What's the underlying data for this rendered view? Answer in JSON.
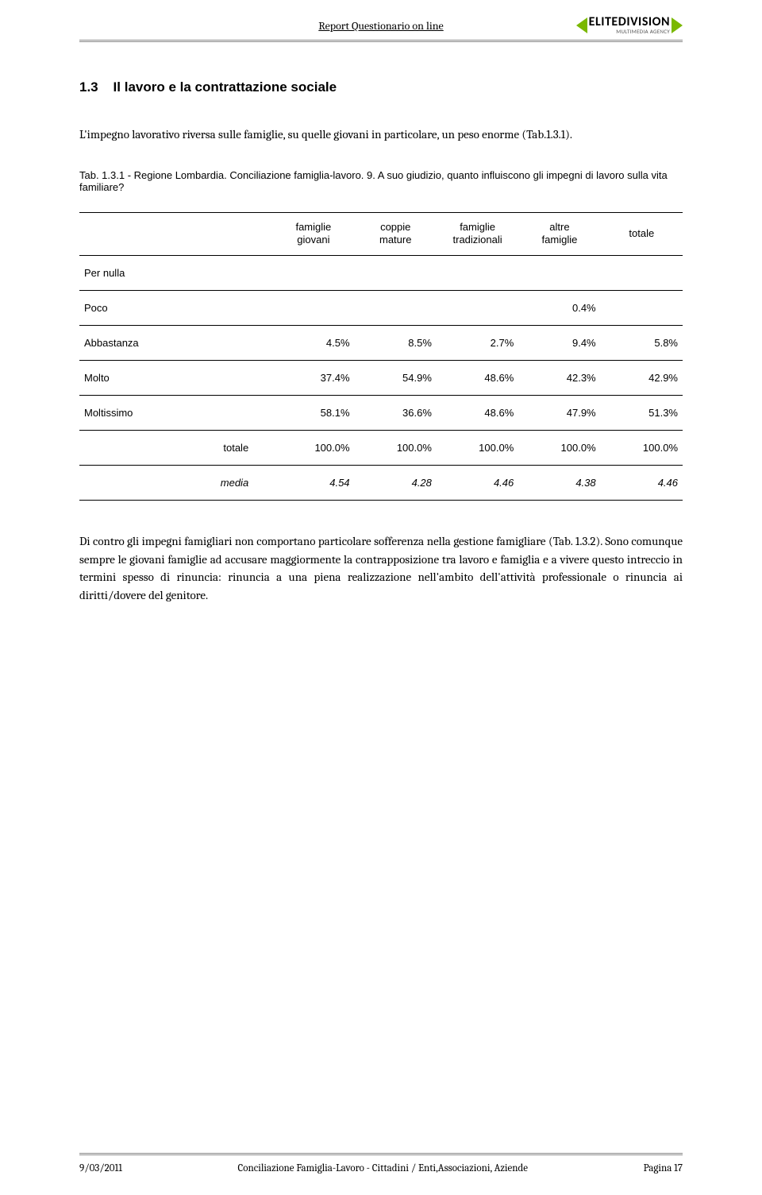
{
  "header": {
    "title": "Report Questionario on line",
    "logo_main": "ELITEDIVISION",
    "logo_sub": "MULTIMEDIA AGENCY"
  },
  "section": {
    "number": "1.3",
    "title": "Il lavoro e la contrattazione sociale"
  },
  "para1": "L'impegno lavorativo riversa sulle famiglie, su quelle giovani in particolare, un peso enorme (Tab.1.3.1).",
  "table": {
    "caption": "Tab. 1.3.1 - Regione Lombardia. Conciliazione famiglia-lavoro. 9. A suo giudizio, quanto influiscono gli impegni di lavoro sulla vita familiare?",
    "columns": [
      "",
      "famiglie giovani",
      "coppie mature",
      "famiglie tradizionali",
      "altre famiglie",
      "totale"
    ],
    "rows": [
      {
        "label": "Per nulla",
        "cells": [
          "",
          "",
          "",
          "",
          ""
        ]
      },
      {
        "label": "Poco",
        "cells": [
          "",
          "",
          "",
          "0.4%",
          ""
        ]
      },
      {
        "label": "Abbastanza",
        "cells": [
          "4.5%",
          "8.5%",
          "2.7%",
          "9.4%",
          "5.8%"
        ]
      },
      {
        "label": "Molto",
        "cells": [
          "37.4%",
          "54.9%",
          "48.6%",
          "42.3%",
          "42.9%"
        ]
      },
      {
        "label": "Moltissimo",
        "cells": [
          "58.1%",
          "36.6%",
          "48.6%",
          "47.9%",
          "51.3%"
        ]
      }
    ],
    "totale": {
      "label": "totale",
      "cells": [
        "100.0%",
        "100.0%",
        "100.0%",
        "100.0%",
        "100.0%"
      ]
    },
    "media": {
      "label": "media",
      "cells": [
        "4.54",
        "4.28",
        "4.46",
        "4.38",
        "4.46"
      ]
    }
  },
  "para2": "Di contro gli impegni famigliari non comportano particolare sofferenza nella gestione famigliare (Tab. 1.3.2). Sono comunque sempre le giovani famiglie ad accusare maggiormente la contrapposizione tra lavoro e famiglia e a vivere questo intreccio in termini spesso di rinuncia: rinuncia a una piena realizzazione nell'ambito dell'attività professionale o rinuncia ai diritti/dovere del genitore.",
  "footer": {
    "date": "9/03/2011",
    "center": "Conciliazione Famiglia-Lavoro - Cittadini / Enti,Associazioni, Aziende",
    "page": "Pagina 17"
  }
}
